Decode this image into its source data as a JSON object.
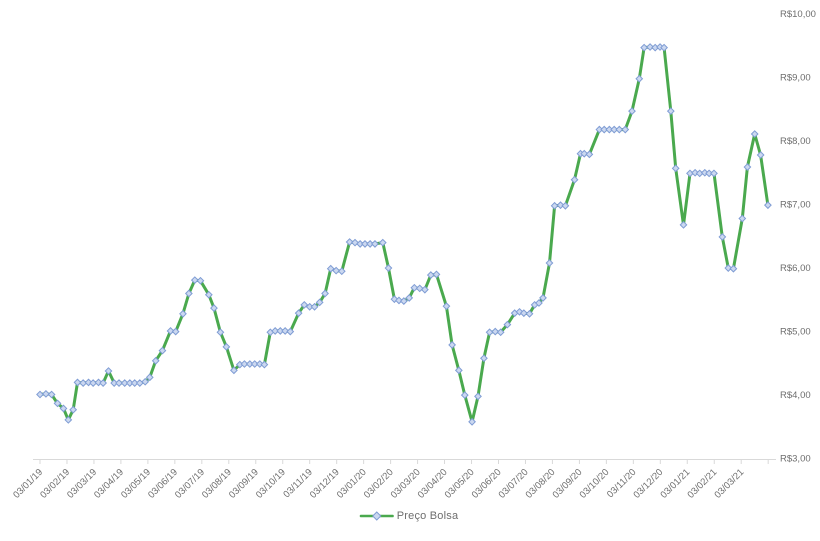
{
  "colors": {
    "background": "#ffffff",
    "line": "#4aa94e",
    "marker_fill": "#cbd8f0",
    "marker_stroke": "#7f9cd4",
    "axis": "#d9d9d9",
    "tick_label": "#6e6e6e",
    "legend_text": "#6e6e6e"
  },
  "chart_data": {
    "type": "line",
    "title": "",
    "currency_prefix": "R$",
    "grid": false,
    "y_axis_side": "right",
    "x_label_rotation": -45,
    "ylim": [
      3,
      10
    ],
    "y_ticks": [
      "R$10,00",
      "R$9,00",
      "R$8,00",
      "R$7,00",
      "R$6,00",
      "R$5,00",
      "R$4,00",
      "R$3,00"
    ],
    "y_tick_values": [
      10,
      9,
      8,
      7,
      6,
      5,
      4,
      3
    ],
    "x_tick_labels": [
      "03/01/19",
      "03/02/19",
      "03/03/19",
      "03/04/19",
      "03/05/19",
      "03/06/19",
      "03/07/19",
      "03/08/19",
      "03/09/19",
      "03/10/19",
      "03/11/19",
      "03/12/19",
      "03/01/20",
      "03/02/20",
      "03/03/20",
      "03/04/20",
      "03/05/20",
      "03/06/20",
      "03/07/20",
      "03/08/20",
      "03/09/20",
      "03/10/20",
      "03/11/20",
      "03/12/20",
      "03/01/21",
      "03/02/21",
      "03/03/21"
    ],
    "legend": {
      "label": "Preço Bolsa",
      "position": "bottom-center"
    },
    "series": [
      {
        "name": "Preço Bolsa",
        "marker": "diamond",
        "points": [
          [
            0.0,
            4.0
          ],
          [
            0.22,
            4.01
          ],
          [
            0.43,
            4.0
          ],
          [
            0.65,
            3.86
          ],
          [
            0.87,
            3.78
          ],
          [
            1.05,
            3.6
          ],
          [
            1.23,
            3.76
          ],
          [
            1.39,
            4.19
          ],
          [
            1.6,
            4.18
          ],
          [
            1.8,
            4.19
          ],
          [
            1.97,
            4.18
          ],
          [
            2.17,
            4.19
          ],
          [
            2.34,
            4.18
          ],
          [
            2.54,
            4.37
          ],
          [
            2.75,
            4.18
          ],
          [
            2.93,
            4.18
          ],
          [
            3.14,
            4.18
          ],
          [
            3.33,
            4.18
          ],
          [
            3.51,
            4.18
          ],
          [
            3.7,
            4.18
          ],
          [
            3.9,
            4.2
          ],
          [
            4.07,
            4.27
          ],
          [
            4.29,
            4.53
          ],
          [
            4.54,
            4.69
          ],
          [
            4.84,
            5.0
          ],
          [
            5.03,
            4.99
          ],
          [
            5.3,
            5.27
          ],
          [
            5.52,
            5.59
          ],
          [
            5.74,
            5.8
          ],
          [
            5.95,
            5.79
          ],
          [
            6.26,
            5.57
          ],
          [
            6.45,
            5.36
          ],
          [
            6.69,
            4.98
          ],
          [
            6.91,
            4.75
          ],
          [
            7.19,
            4.38
          ],
          [
            7.41,
            4.47
          ],
          [
            7.58,
            4.48
          ],
          [
            7.78,
            4.48
          ],
          [
            7.96,
            4.48
          ],
          [
            8.15,
            4.48
          ],
          [
            8.32,
            4.47
          ],
          [
            8.54,
            4.98
          ],
          [
            8.72,
            5.0
          ],
          [
            8.91,
            5.0
          ],
          [
            9.09,
            5.0
          ],
          [
            9.28,
            4.99
          ],
          [
            9.59,
            5.28
          ],
          [
            9.8,
            5.41
          ],
          [
            10.0,
            5.38
          ],
          [
            10.18,
            5.38
          ],
          [
            10.37,
            5.45
          ],
          [
            10.57,
            5.59
          ],
          [
            10.78,
            5.98
          ],
          [
            10.98,
            5.95
          ],
          [
            11.19,
            5.94
          ],
          [
            11.48,
            6.4
          ],
          [
            11.68,
            6.39
          ],
          [
            11.87,
            6.37
          ],
          [
            12.05,
            6.37
          ],
          [
            12.24,
            6.37
          ],
          [
            12.42,
            6.37
          ],
          [
            12.71,
            6.39
          ],
          [
            12.92,
            5.99
          ],
          [
            13.14,
            5.5
          ],
          [
            13.31,
            5.48
          ],
          [
            13.49,
            5.47
          ],
          [
            13.69,
            5.52
          ],
          [
            13.88,
            5.68
          ],
          [
            14.08,
            5.67
          ],
          [
            14.27,
            5.65
          ],
          [
            14.49,
            5.88
          ],
          [
            14.7,
            5.89
          ],
          [
            15.07,
            5.39
          ],
          [
            15.28,
            4.78
          ],
          [
            15.53,
            4.38
          ],
          [
            15.75,
            3.99
          ],
          [
            16.02,
            3.57
          ],
          [
            16.24,
            3.97
          ],
          [
            16.46,
            4.57
          ],
          [
            16.67,
            4.98
          ],
          [
            16.88,
            4.99
          ],
          [
            17.08,
            4.98
          ],
          [
            17.33,
            5.1
          ],
          [
            17.6,
            5.28
          ],
          [
            17.78,
            5.3
          ],
          [
            17.94,
            5.28
          ],
          [
            18.15,
            5.27
          ],
          [
            18.34,
            5.41
          ],
          [
            18.5,
            5.44
          ],
          [
            18.65,
            5.52
          ],
          [
            18.89,
            6.07
          ],
          [
            19.08,
            6.97
          ],
          [
            19.3,
            6.98
          ],
          [
            19.48,
            6.97
          ],
          [
            19.82,
            7.38
          ],
          [
            20.04,
            7.79
          ],
          [
            20.18,
            7.79
          ],
          [
            20.37,
            7.78
          ],
          [
            20.74,
            8.17
          ],
          [
            20.92,
            8.17
          ],
          [
            21.11,
            8.17
          ],
          [
            21.29,
            8.17
          ],
          [
            21.48,
            8.17
          ],
          [
            21.7,
            8.17
          ],
          [
            21.95,
            8.46
          ],
          [
            22.22,
            8.97
          ],
          [
            22.4,
            9.46
          ],
          [
            22.62,
            9.47
          ],
          [
            22.81,
            9.46
          ],
          [
            22.99,
            9.47
          ],
          [
            23.14,
            9.46
          ],
          [
            23.39,
            8.46
          ],
          [
            23.57,
            7.56
          ],
          [
            23.86,
            6.67
          ],
          [
            24.1,
            7.48
          ],
          [
            24.29,
            7.49
          ],
          [
            24.46,
            7.48
          ],
          [
            24.65,
            7.49
          ],
          [
            24.81,
            7.48
          ],
          [
            24.99,
            7.48
          ],
          [
            25.3,
            6.48
          ],
          [
            25.52,
            5.99
          ],
          [
            25.71,
            5.98
          ],
          [
            26.04,
            6.77
          ],
          [
            26.23,
            7.58
          ],
          [
            26.5,
            8.1
          ],
          [
            26.72,
            7.77
          ],
          [
            26.99,
            6.98
          ]
        ]
      }
    ]
  }
}
